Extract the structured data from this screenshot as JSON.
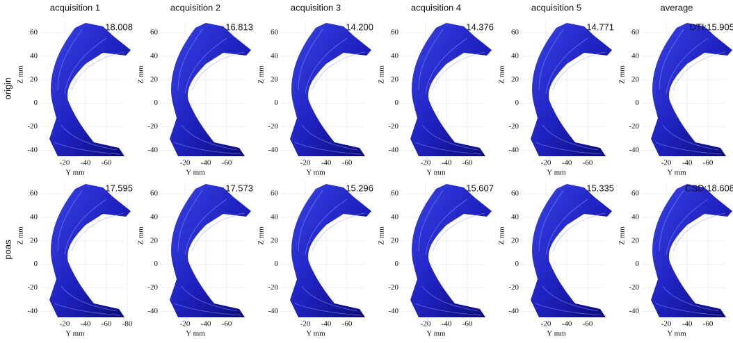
{
  "columns": [
    "acquisition 1",
    "acquisition 2",
    "acquisition 3",
    "acquisition 4",
    "acquisition 5",
    "average"
  ],
  "axis": {
    "x_label": "Y mm",
    "y_label": "Z mm"
  },
  "yticks": [
    60,
    40,
    20,
    0,
    -20,
    -40
  ],
  "rows": [
    {
      "label": "origin",
      "panels": [
        {
          "score": "18.008",
          "xticks": [
            -20,
            -40,
            -60
          ]
        },
        {
          "score": "16.813",
          "xticks": [
            -20,
            -40,
            -60
          ]
        },
        {
          "score": "14.200",
          "xticks": [
            -20,
            -40,
            -60
          ]
        },
        {
          "score": "14.376",
          "xticks": [
            -20,
            -40,
            -60
          ]
        },
        {
          "score": "14.771",
          "xticks": [
            -20,
            -40,
            -60
          ]
        },
        {
          "score": "DTI:15.905",
          "xticks": [
            -20,
            -40,
            -60
          ]
        }
      ]
    },
    {
      "label": "poas",
      "panels": [
        {
          "score": "17.595",
          "xticks": [
            -20,
            -40,
            -60,
            -80
          ]
        },
        {
          "score": "17.573",
          "xticks": [
            -20,
            -40,
            -60
          ]
        },
        {
          "score": "15.296",
          "xticks": [
            -20,
            -40,
            -60
          ]
        },
        {
          "score": "15.607",
          "xticks": [
            -20,
            -40,
            -60
          ]
        },
        {
          "score": "15.335",
          "xticks": [
            -20,
            -40,
            -60
          ]
        },
        {
          "score": "CSD:18.608",
          "xticks": [
            -20,
            -40,
            -60
          ]
        }
      ]
    }
  ]
}
